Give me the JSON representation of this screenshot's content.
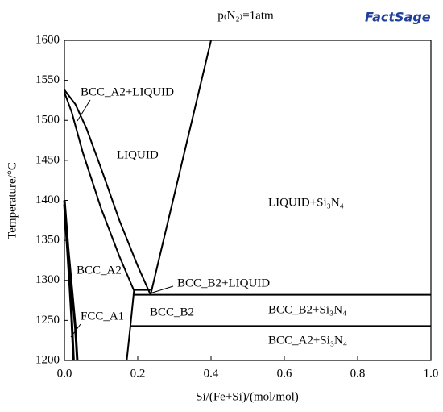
{
  "chart_data": {
    "type": "phase-diagram",
    "title": "p₍N₂₎=1atm",
    "logo": "FactSage",
    "xlabel": "Si/(Fe+Si)/(mol/mol)",
    "ylabel": "Temperature/°C",
    "xlim": [
      0,
      1
    ],
    "ylim": [
      1200,
      1600
    ],
    "xticks": [
      {
        "value": 0,
        "label": "0.0"
      },
      {
        "value": 0.2,
        "label": "0.2"
      },
      {
        "value": 0.4,
        "label": "0.4"
      },
      {
        "value": 0.6,
        "label": "0.6"
      },
      {
        "value": 0.8,
        "label": "0.8"
      },
      {
        "value": 1,
        "label": "1.0"
      }
    ],
    "yticks": [
      1200,
      1250,
      1300,
      1350,
      1400,
      1450,
      1500,
      1550,
      1600
    ],
    "color": "#000000",
    "series": [
      {
        "x": [
          0,
          0.03,
          0.06,
          0.1,
          0.15,
          0.2,
          0.235
        ],
        "values": [
          1538,
          1520,
          1490,
          1440,
          1375,
          1318,
          1282
        ]
      },
      {
        "x": [
          0,
          0.02,
          0.05,
          0.1,
          0.15,
          0.19
        ],
        "values": [
          1535,
          1510,
          1460,
          1390,
          1330,
          1287
        ]
      },
      {
        "x": [
          0.235,
          0.4
        ],
        "values": [
          1282,
          1600
        ]
      },
      {
        "x": [
          0.19,
          1
        ],
        "values": [
          1282,
          1282
        ]
      },
      {
        "x": [
          0.18,
          1
        ],
        "values": [
          1243,
          1243
        ]
      },
      {
        "x": [
          0.19,
          0.235
        ],
        "values": [
          1288,
          1288
        ]
      },
      {
        "x": [
          0.17,
          0.18,
          0.19
        ],
        "values": [
          1200,
          1243,
          1288
        ]
      },
      {
        "x": [
          0,
          0.01,
          0.02,
          0.03,
          0.035
        ],
        "values": [
          1400,
          1340,
          1290,
          1240,
          1200
        ]
      },
      {
        "x": [
          0,
          0.008,
          0.015,
          0.02,
          0.025
        ],
        "values": [
          1395,
          1340,
          1290,
          1250,
          1200
        ]
      }
    ],
    "annotations": [
      "BCC_A2+LIQUID",
      "LIQUID",
      "LIQUID+Si₃N₄",
      "BCC_A2",
      "BCC_B2+LIQUID",
      "BCC_B2",
      "FCC_A1",
      "BCC_B2+Si₃N₄",
      "BCC_A2+Si₃N₄"
    ]
  }
}
